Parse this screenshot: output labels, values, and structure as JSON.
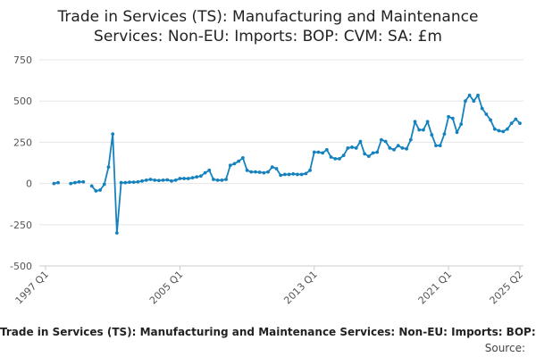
{
  "colors": {
    "line": "#1582be",
    "grid": "#e6e6e6",
    "axis": "#cccccc",
    "text": "#555555"
  },
  "footer": {
    "title": "Trade in Services (TS): Manufacturing and Maintenance Services: Non-EU: Imports: BOP: CVM: SA: £m",
    "source": "Source:"
  },
  "chart_data": {
    "type": "line",
    "title_lines": [
      "Trade in Services (TS): Manufacturing and Maintenance",
      "Services: Non-EU: Imports: BOP: CVM: SA: £m"
    ],
    "xlabel": "",
    "ylabel": "",
    "ylim": [
      -500,
      750
    ],
    "yticks": [
      -500,
      -250,
      0,
      250,
      500,
      750
    ],
    "ytick_labels": [
      "-500",
      "-250",
      "0",
      "250",
      "500",
      "750"
    ],
    "grid": true,
    "x_start": "1997 Q1",
    "x_end": "2025 Q2",
    "xticks": [
      {
        "label": "1997 Q1",
        "index": 0
      },
      {
        "label": "2005 Q1",
        "index": 32
      },
      {
        "label": "2013 Q1",
        "index": 64
      },
      {
        "label": "2021 Q1",
        "index": 96
      },
      {
        "label": "2025 Q2",
        "index": 113
      }
    ],
    "series": [
      {
        "name": "Trade in Services (TS): Manufacturing and Maintenance Services: Non-EU: Imports: BOP: CVM: SA: £m",
        "values": [
          null,
          null,
          0,
          5,
          null,
          null,
          0,
          5,
          10,
          10,
          null,
          -15,
          -45,
          -40,
          -5,
          100,
          300,
          -300,
          5,
          5,
          8,
          8,
          10,
          15,
          20,
          25,
          20,
          18,
          20,
          22,
          15,
          20,
          30,
          30,
          30,
          35,
          40,
          45,
          65,
          80,
          25,
          20,
          20,
          25,
          110,
          120,
          135,
          155,
          80,
          70,
          70,
          68,
          65,
          70,
          100,
          90,
          50,
          55,
          55,
          58,
          55,
          55,
          60,
          80,
          190,
          190,
          185,
          205,
          160,
          150,
          150,
          170,
          215,
          220,
          215,
          255,
          180,
          165,
          185,
          190,
          265,
          255,
          215,
          205,
          230,
          215,
          210,
          265,
          375,
          325,
          325,
          375,
          295,
          230,
          230,
          300,
          405,
          395,
          310,
          360,
          500,
          535,
          500,
          535,
          455,
          420,
          385,
          330,
          320,
          315,
          330,
          365,
          390,
          365
        ]
      }
    ]
  }
}
